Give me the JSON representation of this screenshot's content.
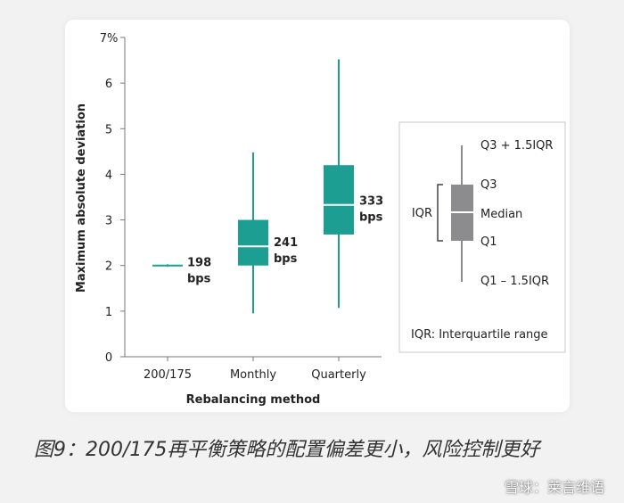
{
  "chart_data": {
    "type": "boxplot",
    "ylabel": "Maximum absolute deviation",
    "xlabel": "Rebalancing method",
    "y_ticks": [
      "0",
      "1",
      "2",
      "3",
      "4",
      "5",
      "6",
      "7%"
    ],
    "ylim": [
      0,
      7
    ],
    "grid": false,
    "color": "#1d9e93",
    "categories": [
      "200/175",
      "Monthly",
      "Quarterly"
    ],
    "boxes": [
      {
        "category": "200/175",
        "whisker_low": 1.97,
        "q1": 2.0,
        "median": 2.0,
        "q3": 2.0,
        "whisker_high": 2.03,
        "label_value": "198",
        "label_unit": "bps"
      },
      {
        "category": "Monthly",
        "whisker_low": 0.95,
        "q1": 2.0,
        "median": 2.42,
        "q3": 3.0,
        "whisker_high": 4.48,
        "label_value": "241",
        "label_unit": "bps"
      },
      {
        "category": "Quarterly",
        "whisker_low": 1.07,
        "q1": 2.68,
        "median": 3.33,
        "q3": 4.2,
        "whisker_high": 6.52,
        "label_value": "333",
        "label_unit": "bps"
      }
    ]
  },
  "legend": {
    "upper_whisker": "Q3 + 1.5IQR",
    "q3": "Q3",
    "median": "Median",
    "q1": "Q1",
    "lower_whisker": "Q1 – 1.5IQR",
    "iqr": "IQR",
    "footnote": "IQR: Interquartile range",
    "box_color": "#8c8c8e"
  },
  "caption": "图9：200/175再平衡策略的配置偏差更小，风险控制更好",
  "watermark": "雪球：莱言维语"
}
